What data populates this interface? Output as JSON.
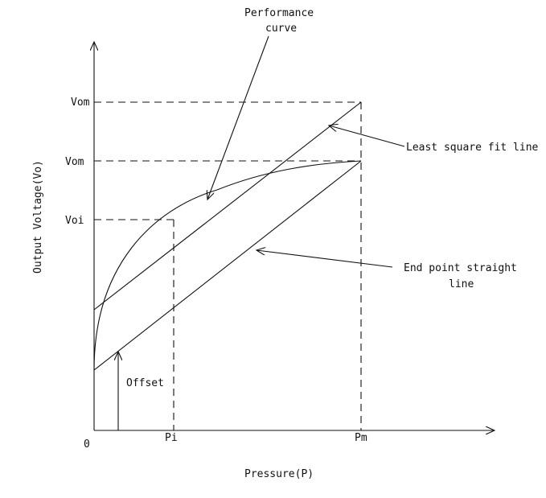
{
  "diagram": {
    "axes": {
      "y_label": "Output Voltage(Vo)",
      "x_label": "Pressure(P)",
      "origin": "0"
    },
    "y_ticks": {
      "vom_upper": "Vom",
      "vom_lower": "Vom",
      "voi": "Voi"
    },
    "x_ticks": {
      "pi": "Pi",
      "pm": "Pm"
    },
    "annotations": {
      "performance_curve": [
        "Performance",
        "curve"
      ],
      "least_square": "Least square fit line",
      "end_point": [
        "End point straight",
        "line"
      ],
      "offset": "Offset"
    }
  }
}
